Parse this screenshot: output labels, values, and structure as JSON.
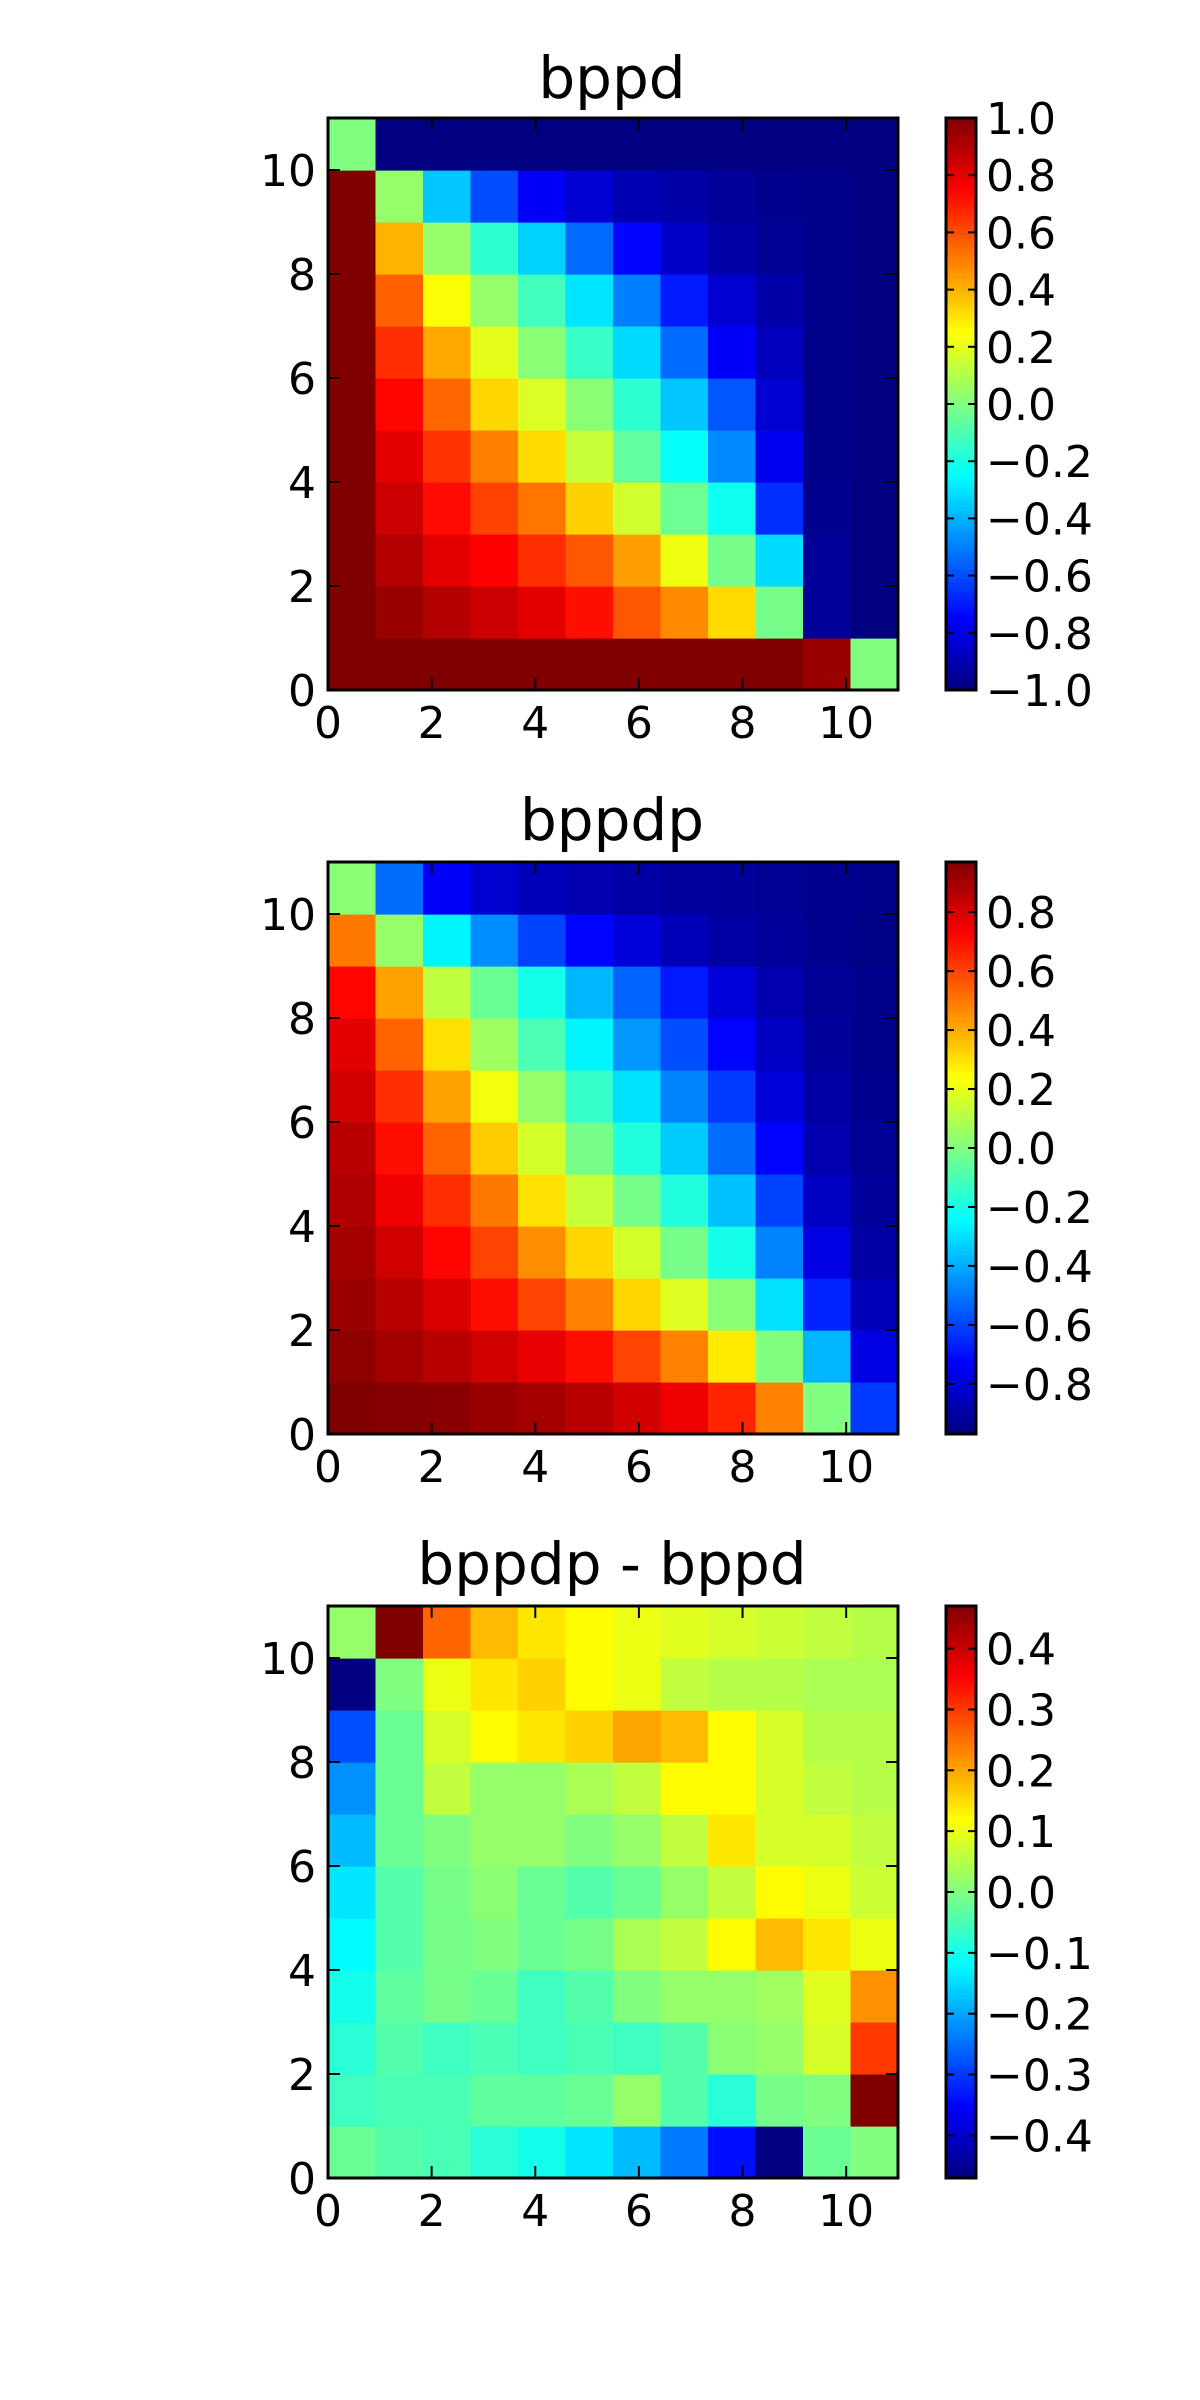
{
  "figure": {
    "colormap": "jet",
    "panel_titles": [
      "bppd",
      "bppdp",
      "bppdp - bppd"
    ]
  },
  "chart_data": [
    {
      "type": "heatmap",
      "title": "bppd",
      "xlabel": "",
      "ylabel": "",
      "xlim": [
        0,
        11
      ],
      "ylim": [
        0,
        11
      ],
      "x_ticks": [
        "0",
        "2",
        "4",
        "6",
        "8",
        "10"
      ],
      "y_ticks": [
        "0",
        "2",
        "4",
        "6",
        "8",
        "10"
      ],
      "colorbar": {
        "min": -1.0,
        "max": 1.0,
        "ticks": [
          "1.0",
          "0.8",
          "0.6",
          "0.4",
          "0.2",
          "0.0",
          "−0.2",
          "−0.4",
          "−0.6",
          "−0.8",
          "−1.0"
        ],
        "tick_values": [
          1.0,
          0.8,
          0.6,
          0.4,
          0.2,
          0.0,
          -0.2,
          -0.4,
          -0.6,
          -0.8,
          -1.0
        ]
      },
      "rows_bottom_to_top": [
        [
          1.0,
          1.0,
          1.0,
          1.0,
          1.0,
          1.0,
          1.0,
          1.0,
          1.0,
          1.0,
          0.95,
          0.0
        ],
        [
          1.0,
          0.95,
          0.9,
          0.85,
          0.8,
          0.72,
          0.58,
          0.48,
          0.32,
          -0.02,
          -0.95,
          -1.0
        ],
        [
          1.0,
          0.9,
          0.8,
          0.75,
          0.66,
          0.58,
          0.44,
          0.22,
          -0.02,
          -0.32,
          -0.95,
          -1.0
        ],
        [
          1.0,
          0.85,
          0.73,
          0.62,
          0.52,
          0.34,
          0.16,
          -0.04,
          -0.22,
          -0.66,
          -0.97,
          -1.0
        ],
        [
          1.0,
          0.8,
          0.65,
          0.5,
          0.32,
          0.14,
          -0.06,
          -0.24,
          -0.48,
          -0.78,
          -0.98,
          -1.0
        ],
        [
          1.0,
          0.74,
          0.55,
          0.33,
          0.18,
          0.02,
          -0.16,
          -0.36,
          -0.58,
          -0.84,
          -0.98,
          -1.0
        ],
        [
          1.0,
          0.66,
          0.42,
          0.2,
          0.02,
          -0.14,
          -0.32,
          -0.54,
          -0.76,
          -0.88,
          -0.98,
          -1.0
        ],
        [
          1.0,
          0.56,
          0.24,
          0.04,
          -0.12,
          -0.3,
          -0.5,
          -0.7,
          -0.84,
          -0.92,
          -0.98,
          -1.0
        ],
        [
          1.0,
          0.4,
          0.04,
          -0.16,
          -0.34,
          -0.54,
          -0.74,
          -0.86,
          -0.92,
          -0.96,
          -0.98,
          -1.0
        ],
        [
          1.0,
          0.04,
          -0.36,
          -0.6,
          -0.76,
          -0.84,
          -0.9,
          -0.92,
          -0.95,
          -0.97,
          -0.98,
          -1.0
        ],
        [
          0.0,
          -1.0,
          -1.0,
          -1.0,
          -1.0,
          -1.0,
          -1.0,
          -1.0,
          -1.0,
          -1.0,
          -1.0,
          -1.0
        ]
      ]
    },
    {
      "type": "heatmap",
      "title": "bppdp",
      "xlabel": "",
      "ylabel": "",
      "xlim": [
        0,
        11
      ],
      "ylim": [
        0,
        11
      ],
      "x_ticks": [
        "0",
        "2",
        "4",
        "6",
        "8",
        "10"
      ],
      "y_ticks": [
        "0",
        "2",
        "4",
        "6",
        "8",
        "10"
      ],
      "colorbar": {
        "min": -0.97,
        "max": 0.97,
        "ticks": [
          "0.8",
          "0.6",
          "0.4",
          "0.2",
          "0.0",
          "−0.2",
          "−0.4",
          "−0.6",
          "−0.8"
        ],
        "tick_values": [
          0.8,
          0.6,
          0.4,
          0.2,
          0.0,
          -0.2,
          -0.4,
          -0.6,
          -0.8
        ]
      },
      "rows_bottom_to_top": [
        [
          0.97,
          0.96,
          0.95,
          0.92,
          0.9,
          0.86,
          0.82,
          0.76,
          0.66,
          0.48,
          0.0,
          -0.62
        ],
        [
          0.94,
          0.9,
          0.86,
          0.82,
          0.77,
          0.7,
          0.6,
          0.48,
          0.28,
          0.0,
          -0.38,
          -0.78
        ],
        [
          0.92,
          0.86,
          0.8,
          0.7,
          0.6,
          0.48,
          0.32,
          0.18,
          0.02,
          -0.3,
          -0.66,
          -0.86
        ],
        [
          0.9,
          0.82,
          0.72,
          0.6,
          0.46,
          0.32,
          0.16,
          -0.02,
          -0.2,
          -0.48,
          -0.78,
          -0.9
        ],
        [
          0.88,
          0.76,
          0.64,
          0.5,
          0.3,
          0.14,
          -0.02,
          -0.18,
          -0.36,
          -0.6,
          -0.84,
          -0.92
        ],
        [
          0.86,
          0.7,
          0.54,
          0.34,
          0.16,
          -0.02,
          -0.18,
          -0.34,
          -0.52,
          -0.72,
          -0.88,
          -0.93
        ],
        [
          0.82,
          0.64,
          0.42,
          0.22,
          0.04,
          -0.14,
          -0.3,
          -0.48,
          -0.62,
          -0.8,
          -0.9,
          -0.94
        ],
        [
          0.78,
          0.54,
          0.3,
          0.06,
          -0.1,
          -0.26,
          -0.44,
          -0.58,
          -0.72,
          -0.84,
          -0.92,
          -0.95
        ],
        [
          0.72,
          0.42,
          0.12,
          -0.04,
          -0.2,
          -0.38,
          -0.54,
          -0.68,
          -0.8,
          -0.88,
          -0.93,
          -0.95
        ],
        [
          0.5,
          0.04,
          -0.26,
          -0.46,
          -0.6,
          -0.72,
          -0.8,
          -0.86,
          -0.9,
          -0.92,
          -0.94,
          -0.96
        ],
        [
          0.02,
          -0.52,
          -0.74,
          -0.82,
          -0.86,
          -0.88,
          -0.9,
          -0.91,
          -0.92,
          -0.93,
          -0.94,
          -0.95
        ]
      ]
    },
    {
      "type": "heatmap",
      "title": "bppdp - bppd",
      "xlabel": "",
      "ylabel": "",
      "xlim": [
        0,
        11
      ],
      "ylim": [
        0,
        11
      ],
      "x_ticks": [
        "0",
        "2",
        "4",
        "6",
        "8",
        "10"
      ],
      "y_ticks": [
        "0",
        "2",
        "4",
        "6",
        "8",
        "10"
      ],
      "colorbar": {
        "min": -0.47,
        "max": 0.47,
        "ticks": [
          "0.4",
          "0.3",
          "0.2",
          "0.1",
          "0.0",
          "−0.1",
          "−0.2",
          "−0.3",
          "−0.4"
        ],
        "tick_values": [
          0.4,
          0.3,
          0.2,
          0.1,
          0.0,
          -0.1,
          -0.2,
          -0.3,
          -0.4
        ],
        "tick_note": ""
      },
      "rows_bottom_to_top": [
        [
          -0.02,
          -0.04,
          -0.05,
          -0.08,
          -0.1,
          -0.14,
          -0.18,
          -0.24,
          -0.34,
          -0.47,
          -0.02,
          0.0
        ],
        [
          -0.06,
          -0.05,
          -0.05,
          -0.03,
          -0.03,
          -0.02,
          0.02,
          -0.04,
          -0.08,
          -0.01,
          0.0,
          0.47
        ],
        [
          -0.08,
          -0.04,
          -0.06,
          -0.05,
          -0.06,
          -0.05,
          -0.06,
          -0.04,
          0.01,
          0.02,
          0.08,
          0.3
        ],
        [
          -0.1,
          -0.03,
          -0.01,
          -0.02,
          -0.06,
          -0.04,
          0.0,
          0.02,
          0.02,
          0.03,
          0.09,
          0.22
        ],
        [
          -0.12,
          -0.04,
          -0.01,
          0.0,
          -0.02,
          -0.01,
          0.04,
          0.06,
          0.12,
          0.18,
          0.14,
          0.1
        ],
        [
          -0.14,
          -0.04,
          -0.01,
          0.01,
          -0.02,
          -0.04,
          -0.02,
          0.02,
          0.06,
          0.12,
          0.1,
          0.07
        ],
        [
          -0.18,
          -0.02,
          0.0,
          0.02,
          0.02,
          0.0,
          0.02,
          0.06,
          0.14,
          0.08,
          0.08,
          0.06
        ],
        [
          -0.22,
          -0.02,
          0.06,
          0.02,
          0.02,
          0.04,
          0.06,
          0.12,
          0.12,
          0.08,
          0.06,
          0.05
        ],
        [
          -0.28,
          -0.02,
          0.08,
          0.12,
          0.14,
          0.16,
          0.2,
          0.18,
          0.12,
          0.08,
          0.05,
          0.05
        ],
        [
          -0.5,
          0.0,
          0.1,
          0.14,
          0.16,
          0.12,
          0.1,
          0.06,
          0.05,
          0.05,
          0.04,
          0.04
        ],
        [
          0.02,
          0.47,
          0.26,
          0.18,
          0.14,
          0.12,
          0.1,
          0.09,
          0.08,
          0.07,
          0.06,
          0.05
        ]
      ]
    }
  ]
}
